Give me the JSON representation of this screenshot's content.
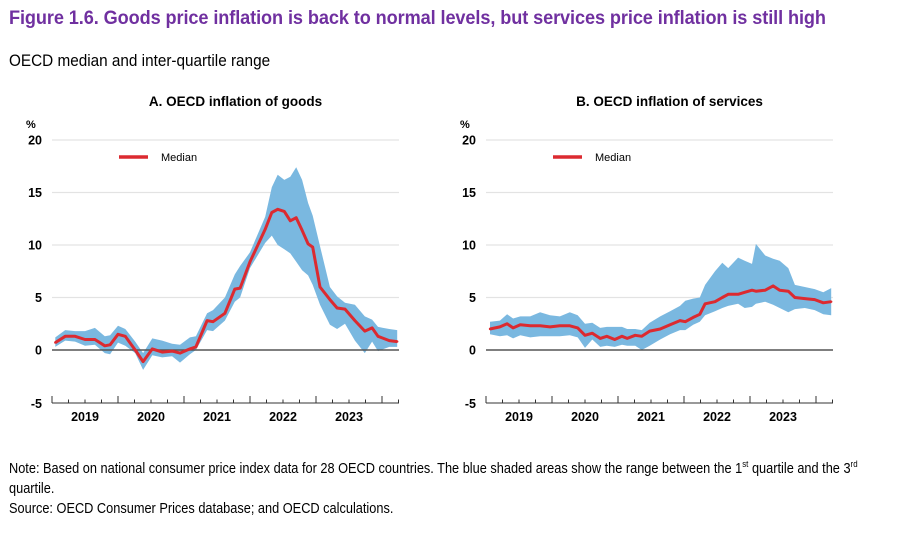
{
  "figure": {
    "title": "Figure 1.6. Goods price inflation is back to normal levels, but services price inflation is still high",
    "subtitle": "OECD median and inter-quartile range",
    "colors": {
      "title": "#7030a0",
      "median": "#dc2a30",
      "iqr_band": "#7ab8e0",
      "gridline": "#e3e3e3",
      "zero_line": "#555555"
    },
    "note_prefix": "Note: Based on national consumer price index data for 28 OECD countries. The blue shaded areas show the range between the 1",
    "note_sup1": "st",
    "note_mid": " quartile and the 3",
    "note_sup2": "rd",
    "note_suffix": " quartile.",
    "source": "Source: OECD Consumer Prices database; and OECD calculations."
  },
  "chart_data": [
    {
      "type": "area",
      "title": "A. OECD inflation of goods",
      "ylabel": "%",
      "xlabel": "",
      "ylim": [
        -5,
        20
      ],
      "yticks": [
        -5,
        0,
        5,
        10,
        15,
        20
      ],
      "xlim": [
        2019.0,
        2024.27
      ],
      "xtick_labels": [
        "2019",
        "2020",
        "2021",
        "2022",
        "2023"
      ],
      "grid": true,
      "legend": {
        "position": "top-left",
        "entries": [
          "Median"
        ]
      },
      "x": [
        2019.05,
        2019.2,
        2019.35,
        2019.5,
        2019.65,
        2019.8,
        2019.88,
        2020.0,
        2020.11,
        2020.26,
        2020.38,
        2020.52,
        2020.67,
        2020.82,
        2020.94,
        2021.09,
        2021.18,
        2021.35,
        2021.44,
        2021.62,
        2021.77,
        2021.85,
        2022.0,
        2022.23,
        2022.33,
        2022.42,
        2022.52,
        2022.61,
        2022.7,
        2022.79,
        2022.88,
        2022.95,
        2023.06,
        2023.21,
        2023.32,
        2023.44,
        2023.59,
        2023.74,
        2023.85,
        2023.94,
        2024.11,
        2024.23
      ],
      "series": [
        {
          "name": "Median",
          "values": [
            0.7,
            1.3,
            1.3,
            1.0,
            1.0,
            0.4,
            0.5,
            1.5,
            1.3,
            0.0,
            -1.1,
            0.1,
            -0.2,
            -0.1,
            -0.3,
            0.1,
            0.3,
            2.8,
            2.7,
            3.5,
            5.8,
            5.9,
            8.4,
            11.5,
            13.1,
            13.4,
            13.2,
            12.3,
            12.6,
            11.4,
            10.1,
            9.8,
            6.0,
            4.8,
            4.0,
            3.9,
            2.8,
            1.8,
            2.1,
            1.3,
            0.9,
            0.8
          ]
        },
        {
          "name": "1st quartile",
          "values": [
            0.3,
            0.9,
            0.8,
            0.4,
            0.5,
            -0.3,
            -0.4,
            0.7,
            0.4,
            -0.3,
            -1.9,
            -0.5,
            -0.7,
            -0.6,
            -1.2,
            -0.4,
            0.0,
            1.9,
            1.8,
            2.8,
            4.6,
            5.0,
            7.8,
            10.2,
            10.9,
            10.0,
            9.6,
            9.2,
            8.4,
            7.6,
            7.1,
            6.2,
            4.3,
            2.4,
            2.0,
            2.5,
            0.9,
            -0.3,
            0.8,
            -0.1,
            0.3,
            0.3
          ]
        },
        {
          "name": "3rd quartile",
          "values": [
            1.2,
            1.9,
            1.8,
            1.8,
            2.1,
            1.3,
            1.4,
            2.3,
            2.0,
            0.8,
            -0.3,
            1.1,
            0.9,
            0.6,
            0.5,
            1.2,
            1.3,
            3.5,
            3.8,
            5.0,
            7.2,
            8.0,
            9.3,
            12.7,
            15.5,
            16.7,
            16.2,
            16.5,
            17.4,
            16.2,
            14.0,
            12.8,
            9.9,
            6.0,
            5.1,
            4.5,
            4.3,
            3.2,
            2.9,
            2.2,
            2.0,
            1.9
          ]
        }
      ]
    },
    {
      "type": "area",
      "title": "B. OECD inflation of services",
      "ylabel": "%",
      "xlabel": "",
      "ylim": [
        -5,
        20
      ],
      "yticks": [
        -5,
        0,
        5,
        10,
        15,
        20
      ],
      "xlim": [
        2019.0,
        2024.27
      ],
      "xtick_labels": [
        "2019",
        "2020",
        "2021",
        "2022",
        "2023"
      ],
      "grid": true,
      "legend": {
        "position": "top-left",
        "entries": [
          "Median"
        ]
      },
      "x": [
        2019.06,
        2019.21,
        2019.32,
        2019.41,
        2019.52,
        2019.67,
        2019.82,
        2019.97,
        2020.12,
        2020.27,
        2020.39,
        2020.5,
        2020.61,
        2020.73,
        2020.83,
        2020.95,
        2021.06,
        2021.14,
        2021.26,
        2021.36,
        2021.48,
        2021.64,
        2021.79,
        2021.94,
        2022.02,
        2022.14,
        2022.24,
        2022.32,
        2022.47,
        2022.58,
        2022.67,
        2022.82,
        2022.92,
        2023.03,
        2023.09,
        2023.23,
        2023.35,
        2023.45,
        2023.58,
        2023.68,
        2023.83,
        2023.98,
        2024.11,
        2024.23
      ],
      "series": [
        {
          "name": "Median",
          "values": [
            2.0,
            2.2,
            2.5,
            2.1,
            2.4,
            2.3,
            2.3,
            2.2,
            2.3,
            2.3,
            2.1,
            1.4,
            1.6,
            1.1,
            1.3,
            1.0,
            1.3,
            1.1,
            1.4,
            1.3,
            1.8,
            2.0,
            2.4,
            2.8,
            2.7,
            3.1,
            3.4,
            4.4,
            4.6,
            5.0,
            5.3,
            5.3,
            5.5,
            5.7,
            5.6,
            5.7,
            6.1,
            5.7,
            5.6,
            5.0,
            4.9,
            4.8,
            4.5,
            4.6
          ]
        },
        {
          "name": "1st quartile",
          "values": [
            1.5,
            1.3,
            1.4,
            1.1,
            1.4,
            1.2,
            1.3,
            1.3,
            1.3,
            1.4,
            1.2,
            0.2,
            1.0,
            0.3,
            0.4,
            0.3,
            0.5,
            0.4,
            0.4,
            0.0,
            0.4,
            1.0,
            1.5,
            1.9,
            1.9,
            2.4,
            2.7,
            3.3,
            3.7,
            4.0,
            4.2,
            4.4,
            4.0,
            4.1,
            4.4,
            4.6,
            4.3,
            4.0,
            3.6,
            3.9,
            4.0,
            3.8,
            3.4,
            3.3
          ]
        },
        {
          "name": "3rd quartile",
          "values": [
            2.7,
            2.8,
            3.4,
            3.0,
            3.2,
            3.2,
            3.6,
            3.3,
            3.2,
            3.6,
            3.3,
            2.5,
            2.6,
            2.1,
            2.2,
            2.2,
            2.2,
            2.0,
            2.0,
            1.9,
            2.6,
            3.2,
            3.7,
            4.2,
            4.7,
            4.9,
            5.0,
            6.2,
            7.5,
            8.3,
            7.8,
            8.8,
            8.5,
            8.2,
            10.1,
            9.0,
            8.7,
            8.5,
            7.8,
            6.2,
            6.0,
            5.8,
            5.5,
            5.9
          ]
        }
      ]
    }
  ]
}
